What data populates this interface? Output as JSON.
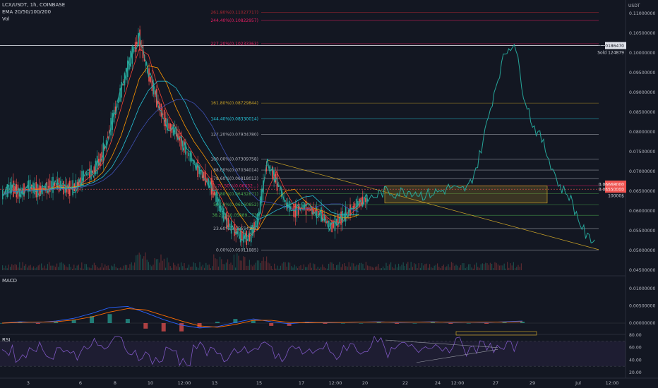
{
  "header": {
    "symbol_line": "LCX/USDT, 1h, COINBASE",
    "ema_line": "EMA 20/50/100/200",
    "vol_line": "Vol"
  },
  "panes": {
    "macd_label": "MACD",
    "rsi_label": "RSI"
  },
  "price_axis": {
    "currency": "USDT",
    "ticks": [
      "0.11000000",
      "0.10500000",
      "0.10000000",
      "0.09500000",
      "0.09000000",
      "0.08500000",
      "0.08000000",
      "0.07500000",
      "0.07000000",
      "0.06500000",
      "0.06000000",
      "0.05500000",
      "0.05000000",
      "0.04500000"
    ],
    "last_price_tag": "0.10186470",
    "sold_note": "Sold 124879",
    "tag_red_1": "0.06668000",
    "tag_red_2": "0.06550000",
    "tag_dark": "10000$"
  },
  "macd_axis": {
    "ticks": [
      "0.01000000",
      "0.00500000",
      "0.00000000"
    ]
  },
  "rsi_axis": {
    "ticks": [
      "80.00",
      "60.00",
      "40.00",
      "20.00"
    ]
  },
  "time_axis": {
    "ticks": [
      "3",
      "6",
      "8",
      "10",
      "12:00",
      "13",
      "15",
      "17",
      "12:00",
      "20",
      "22",
      "24",
      "12:00",
      "27",
      "29",
      "Jul",
      "12:00"
    ]
  },
  "fib_levels": [
    {
      "label": "261.80%(0.11027717)",
      "color": "#b22833"
    },
    {
      "label": "244.40%(0.10822957)",
      "color": "#e91e63"
    },
    {
      "label": "227.20%(0.10233363)",
      "color": "#e91e63"
    },
    {
      "label": "161.80%(0.08729844)",
      "color": "#c9a227"
    },
    {
      "label": "144.40%(0.08330014)",
      "color": "#26c6da"
    },
    {
      "label": "127.20%(0.07934780)",
      "color": "#b2b5be"
    },
    {
      "label": "100.00%(0.07309758)",
      "color": "#b2b5be"
    },
    {
      "label": "88.00%(0.07034014)",
      "color": "#b2b5be"
    },
    {
      "label": "78.60%(0.06818013)",
      "color": "#b2b5be"
    },
    {
      "label": "70.50%(0.06632...)",
      "color": "#e91e63"
    },
    {
      "label": "61.80%(0.06432871)",
      "color": "#4caf50"
    },
    {
      "label": "50.00%(0.06160852)",
      "color": "#4caf50"
    },
    {
      "label": "38.20%(0.05889...73)",
      "color": "#4caf50"
    },
    {
      "label": "23.60%(0.05554183)",
      "color": "#b2b5be"
    },
    {
      "label": "0.00%(0.05011885)",
      "color": "#b2b5be"
    }
  ],
  "colors": {
    "background": "#131722",
    "up": "#26a69a",
    "down": "#ef5350",
    "rsi": "#7e57c2",
    "macd": "#2962ff",
    "signal": "#ff6d00",
    "accent_yellow": "#c9a227"
  },
  "chart_data": {
    "type": "line",
    "title": "LCX/USDT, 1h, COINBASE",
    "xlabel": "",
    "ylabel": "USDT",
    "ylim": [
      0.0435,
      0.1135
    ],
    "series": [
      {
        "values": [
          0.064,
          0.066,
          0.0645,
          0.0665,
          0.065,
          0.066,
          0.067,
          0.0655,
          0.066,
          0.069,
          0.07,
          0.074,
          0.082,
          0.09,
          0.098,
          0.104,
          0.095,
          0.088,
          0.082,
          0.08,
          0.076,
          0.072,
          0.069,
          0.066,
          0.06,
          0.056,
          0.054,
          0.053,
          0.058,
          0.072,
          0.068,
          0.062,
          0.06,
          0.061,
          0.06,
          0.059,
          0.056,
          0.058,
          0.06,
          0.062,
          0.063,
          0.064,
          0.065,
          0.0645,
          0.065,
          0.065,
          0.064,
          0.0645,
          0.065,
          0.066,
          0.065,
          0.066,
          0.072,
          0.082,
          0.092,
          0.1,
          0.103,
          0.09,
          0.082,
          0.078,
          0.072,
          0.066,
          0.064,
          0.058,
          0.053,
          0.053
        ]
      },
      {
        "name": "Sold 124879",
        "values": [
          0.1018647
        ]
      }
    ],
    "rsi": {
      "ylim": [
        20,
        80
      ],
      "bands": [
        30,
        70
      ],
      "values": [
        55,
        45,
        62,
        50,
        58,
        48,
        66,
        60,
        72,
        54,
        48,
        40,
        55,
        38,
        62,
        52,
        45,
        58,
        50,
        64,
        42,
        58,
        52,
        60,
        48,
        62,
        56,
        70,
        52,
        62,
        58,
        66,
        60,
        68,
        55,
        64,
        58,
        62
      ]
    },
    "macd": {
      "ylim": [
        -0.003,
        0.012
      ],
      "macd": [
        0,
        0.0004,
        0.0002,
        0.0006,
        0.0014,
        0.0028,
        0.0045,
        0.0048,
        0.003,
        0.001,
        -0.0006,
        -0.0014,
        -0.001,
        0.0002,
        0.0012,
        0.0004,
        -0.0002,
        0.0003,
        0.0001,
        0.0002,
        0.0003,
        0.0004,
        0.0002,
        0.0003,
        0.0004,
        0.0002,
        0.0003,
        0.0002,
        0.0004,
        0.0006
      ],
      "signal": [
        0,
        0.0002,
        0.0003,
        0.0004,
        0.0009,
        0.0018,
        0.0032,
        0.0042,
        0.0038,
        0.0022,
        0.0006,
        -0.0008,
        -0.0012,
        -0.0004,
        0.0008,
        0.0008,
        0.0002,
        0.0001,
        0.0002,
        0.0002,
        0.0003,
        0.0003,
        0.0003,
        0.0003,
        0.0003,
        0.0003,
        0.0003,
        0.0003,
        0.0003,
        0.0004
      ]
    }
  }
}
